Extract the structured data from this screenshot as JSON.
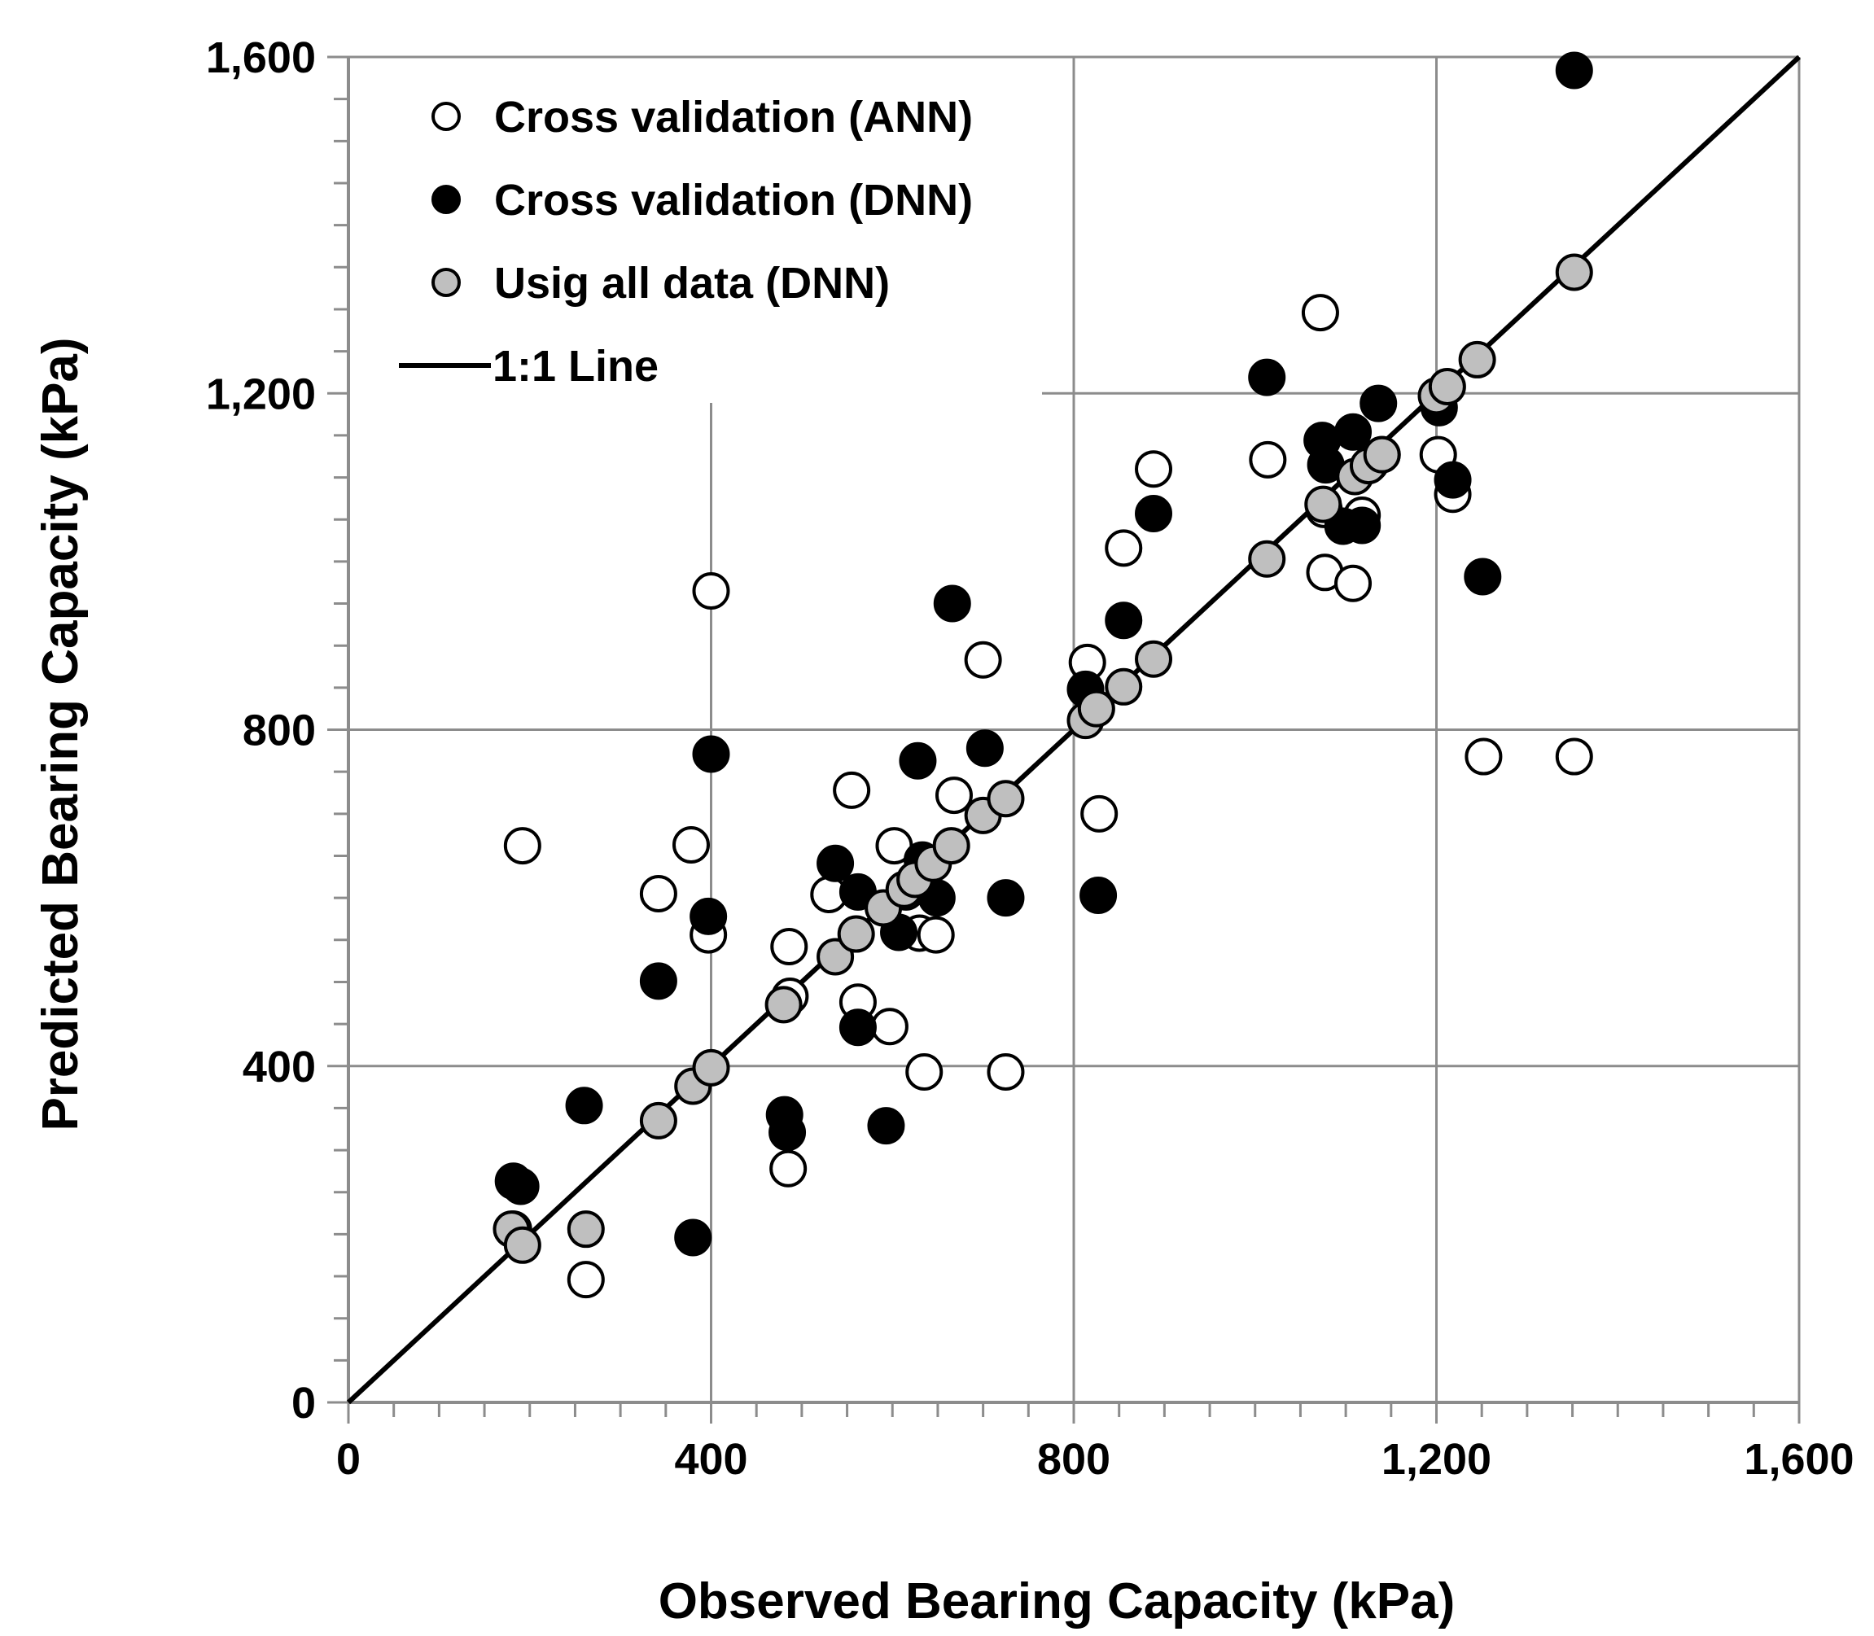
{
  "chart_data": {
    "type": "scatter",
    "title": "",
    "xlabel": "Observed Bearing Capacity (kPa)",
    "ylabel": "Predicted Bearing Capacity (kPa)",
    "xlim": [
      0,
      1600
    ],
    "ylim": [
      0,
      1600
    ],
    "x_ticks": [
      0,
      400,
      800,
      1200,
      1600
    ],
    "y_ticks": [
      0,
      400,
      800,
      1200,
      1600
    ],
    "x_tick_labels": [
      "0",
      "400",
      "800",
      "1,200",
      "1,600"
    ],
    "y_tick_labels": [
      "0",
      "400",
      "800",
      "1,200",
      "1,600"
    ],
    "minor_tick_step": 50,
    "grid": true,
    "legend_position": "top-left",
    "colors": {
      "ann_fill": "#ffffff",
      "dnn_fill": "#000000",
      "all_fill": "#bfbfbf",
      "marker_stroke": "#000000",
      "grid": "#8c8c8c",
      "line": "#000000"
    },
    "legend": [
      {
        "label": "Cross validation (ANN)",
        "series": "ann",
        "marker": "open-circle"
      },
      {
        "label": "Cross validation (DNN)",
        "series": "dnn",
        "marker": "filled-circle"
      },
      {
        "label": "Usig all data (DNN)",
        "series": "all",
        "marker": "gray-circle"
      },
      {
        "label": "1:1 Line",
        "series": "line",
        "marker": "line"
      }
    ],
    "series": [
      {
        "name": "Cross validation (ANN)",
        "key": "ann",
        "points": [
          [
            182,
            206
          ],
          [
            192,
            662
          ],
          [
            262,
            146
          ],
          [
            342,
            605
          ],
          [
            378,
            663
          ],
          [
            397,
            556
          ],
          [
            400,
            965
          ],
          [
            485,
            278
          ],
          [
            486,
            542
          ],
          [
            487,
            483
          ],
          [
            530,
            604
          ],
          [
            555,
            728
          ],
          [
            562,
            476
          ],
          [
            597,
            447
          ],
          [
            602,
            662
          ],
          [
            615,
            607
          ],
          [
            630,
            558
          ],
          [
            635,
            393
          ],
          [
            648,
            556
          ],
          [
            668,
            722
          ],
          [
            700,
            883
          ],
          [
            725,
            393
          ],
          [
            815,
            880
          ],
          [
            828,
            700
          ],
          [
            855,
            1016
          ],
          [
            888,
            1110
          ],
          [
            1014,
            1121
          ],
          [
            1072,
            1296
          ],
          [
            1076,
            1062
          ],
          [
            1077,
            987
          ],
          [
            1108,
            974
          ],
          [
            1118,
            1055
          ],
          [
            1127,
            1116
          ],
          [
            1140,
            1127
          ],
          [
            1202,
            1127
          ],
          [
            1218,
            1080
          ],
          [
            1252,
            768
          ],
          [
            1352,
            768
          ]
        ]
      },
      {
        "name": "Cross validation (DNN)",
        "key": "dnn",
        "points": [
          [
            182,
            263
          ],
          [
            190,
            257
          ],
          [
            260,
            353
          ],
          [
            342,
            501
          ],
          [
            380,
            196
          ],
          [
            397,
            578
          ],
          [
            400,
            771
          ],
          [
            481,
            342
          ],
          [
            484,
            321
          ],
          [
            537,
            641
          ],
          [
            562,
            607
          ],
          [
            562,
            446
          ],
          [
            593,
            329
          ],
          [
            607,
            559
          ],
          [
            628,
            763
          ],
          [
            633,
            645
          ],
          [
            649,
            600
          ],
          [
            666,
            950
          ],
          [
            702,
            778
          ],
          [
            725,
            600
          ],
          [
            813,
            848
          ],
          [
            827,
            603
          ],
          [
            855,
            930
          ],
          [
            888,
            1057
          ],
          [
            1013,
            1219
          ],
          [
            1074,
            1144
          ],
          [
            1078,
            1115
          ],
          [
            1097,
            1042
          ],
          [
            1108,
            1154
          ],
          [
            1118,
            1043
          ],
          [
            1136,
            1188
          ],
          [
            1203,
            1183
          ],
          [
            1218,
            1097
          ],
          [
            1251,
            982
          ],
          [
            1352,
            1584
          ]
        ]
      },
      {
        "name": "Usig all data (DNN)",
        "key": "all",
        "points": [
          [
            180,
            206
          ],
          [
            192,
            187
          ],
          [
            262,
            206
          ],
          [
            342,
            335
          ],
          [
            380,
            376
          ],
          [
            400,
            398
          ],
          [
            480,
            473
          ],
          [
            537,
            530
          ],
          [
            560,
            557
          ],
          [
            590,
            588
          ],
          [
            613,
            610
          ],
          [
            625,
            622
          ],
          [
            645,
            641
          ],
          [
            665,
            662
          ],
          [
            700,
            698
          ],
          [
            725,
            718
          ],
          [
            813,
            811
          ],
          [
            825,
            825
          ],
          [
            855,
            851
          ],
          [
            888,
            884
          ],
          [
            1013,
            1003
          ],
          [
            1075,
            1068
          ],
          [
            1110,
            1101
          ],
          [
            1125,
            1114
          ],
          [
            1140,
            1127
          ],
          [
            1200,
            1197
          ],
          [
            1212,
            1208
          ],
          [
            1245,
            1240
          ],
          [
            1352,
            1344
          ]
        ]
      }
    ],
    "reference_line": {
      "name": "1:1 Line",
      "from": [
        0,
        0
      ],
      "to": [
        1600,
        1600
      ]
    }
  }
}
